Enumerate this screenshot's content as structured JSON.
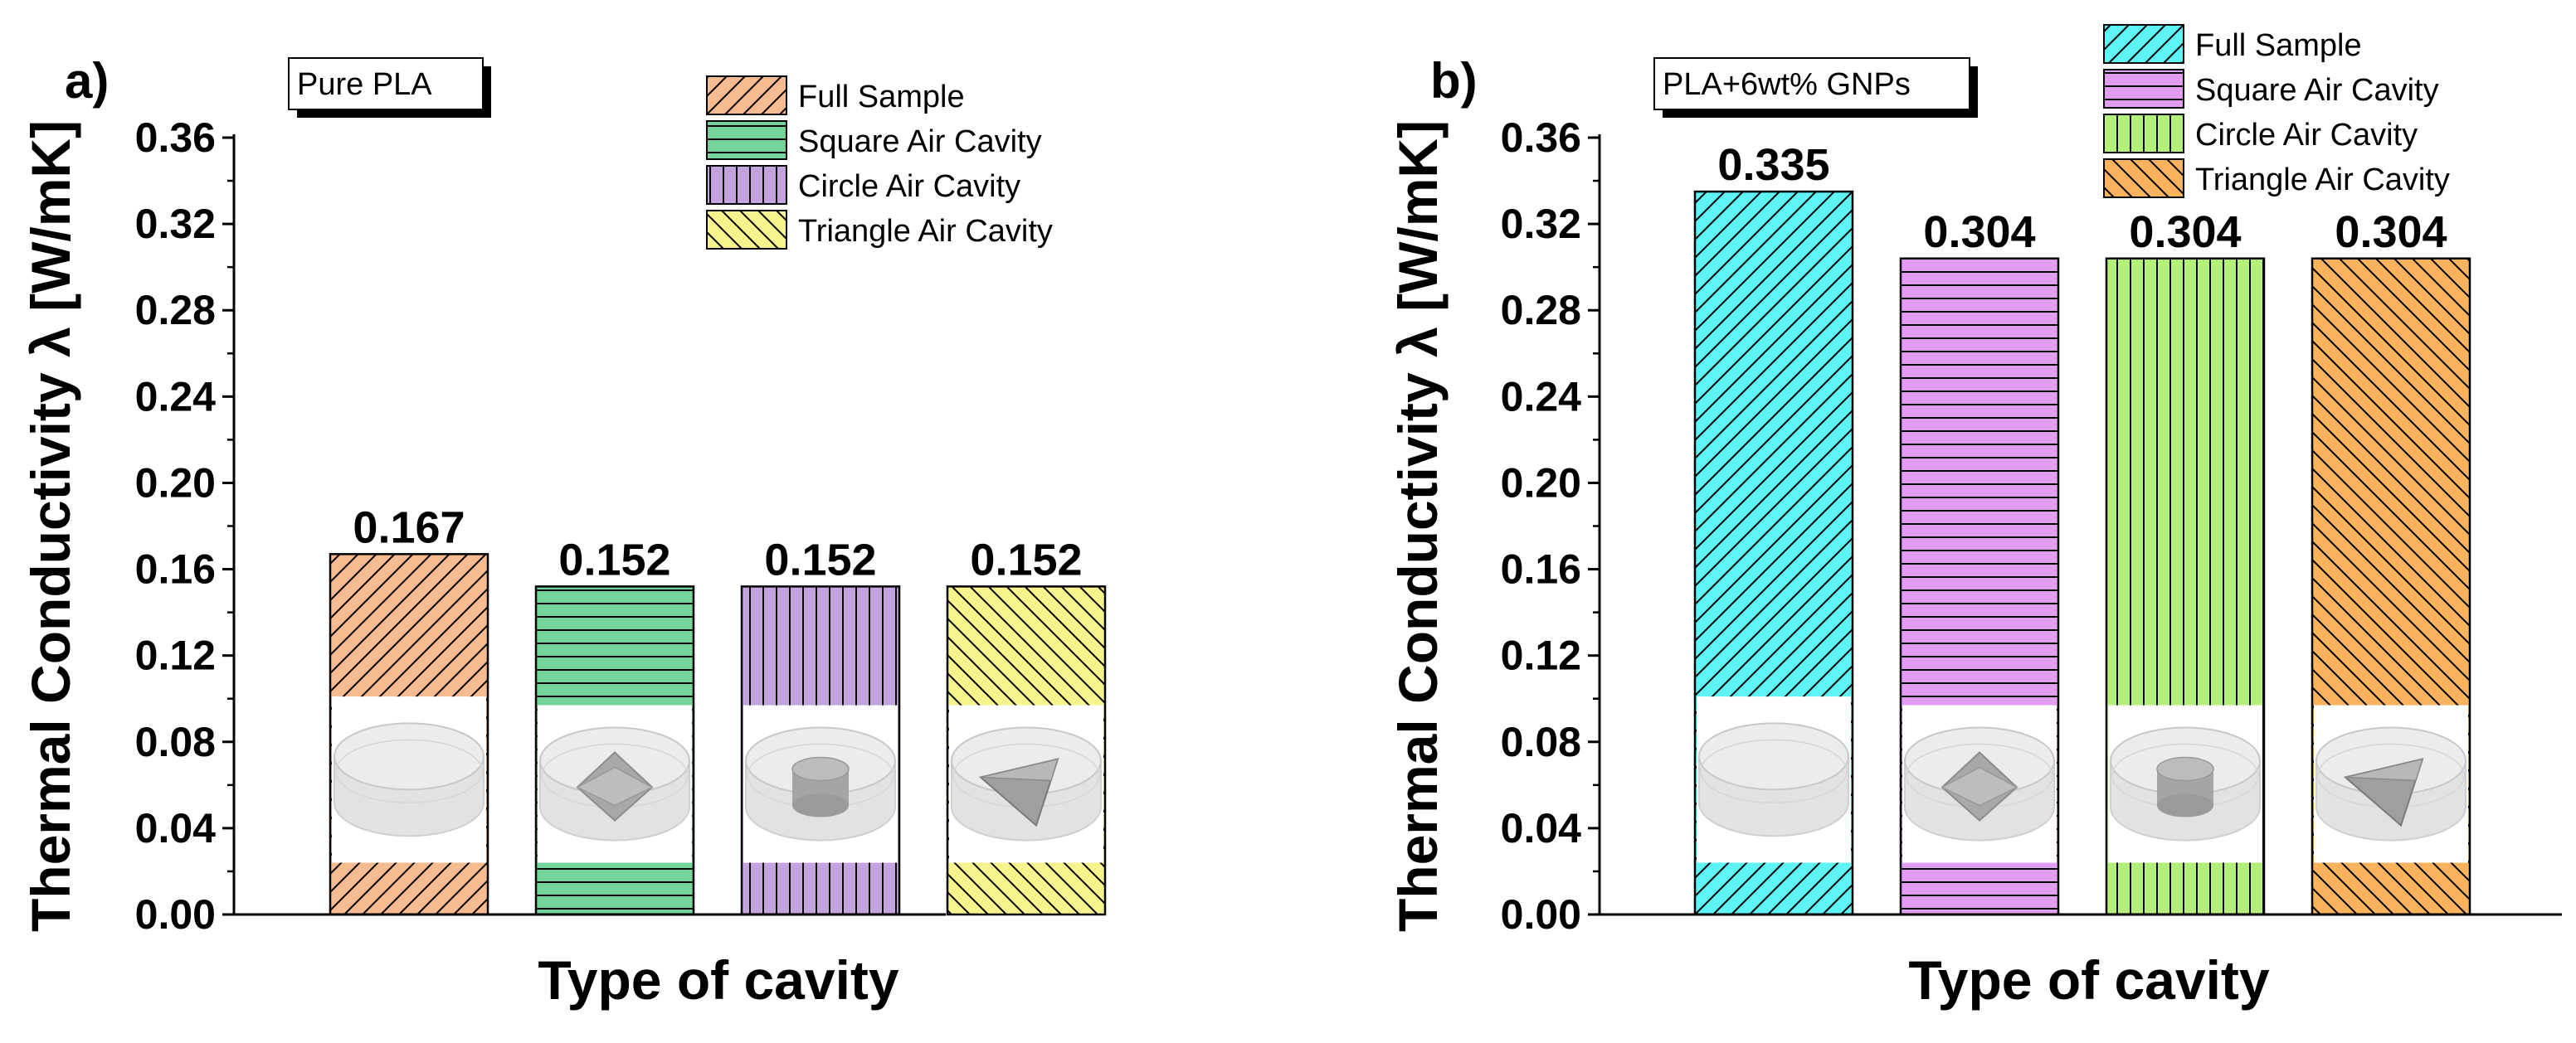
{
  "chart_data": [
    {
      "type": "bar",
      "panel_label": "a)",
      "annotation": "Pure PLA",
      "categories": [
        "Full Sample",
        "Square Air Cavity",
        "Circle Air Cavity",
        "Triangle Air Cavity"
      ],
      "values": [
        0.167,
        0.152,
        0.152,
        0.152
      ],
      "data_labels": [
        "0.167",
        "0.152",
        "0.152",
        "0.152"
      ],
      "colors": [
        "#f7bb8f",
        "#74d39a",
        "#c3a3de",
        "#f7f48d"
      ],
      "hatches": [
        "diag-up",
        "horizontal",
        "vertical",
        "diag-down"
      ],
      "legend": [
        "Full Sample",
        "Square Air Cavity",
        "Circle Air Cavity",
        "Triangle Air Cavity"
      ],
      "legend_position": "top-right",
      "xlabel": "Type of cavity",
      "ylabel": "Thermal Conductivity λ [W/mK]",
      "ylim": [
        0,
        0.36
      ],
      "yticks": [
        "0.00",
        "0.04",
        "0.08",
        "0.12",
        "0.16",
        "0.20",
        "0.24",
        "0.28",
        "0.32",
        "0.36"
      ],
      "insets": [
        "cylinder",
        "square-cavity",
        "circle-cavity",
        "triangle-cavity"
      ]
    },
    {
      "type": "bar",
      "panel_label": "b)",
      "annotation": "PLA+6wt% GNPs",
      "categories": [
        "Full Sample",
        "Square Air Cavity",
        "Circle Air Cavity",
        "Triangle Air Cavity"
      ],
      "values": [
        0.335,
        0.304,
        0.304,
        0.304
      ],
      "data_labels": [
        "0.335",
        "0.304",
        "0.304",
        "0.304"
      ],
      "colors": [
        "#5ef3f5",
        "#e29ef4",
        "#b3f07a",
        "#fbb25c"
      ],
      "hatches": [
        "diag-up",
        "horizontal",
        "vertical",
        "diag-down"
      ],
      "legend": [
        "Full Sample",
        "Square Air Cavity",
        "Circle Air Cavity",
        "Triangle Air Cavity"
      ],
      "legend_position": "top-right",
      "xlabel": "Type of cavity",
      "ylabel": "Thermal Conductivity λ [W/mK]",
      "ylim": [
        0,
        0.36
      ],
      "yticks": [
        "0.00",
        "0.04",
        "0.08",
        "0.12",
        "0.16",
        "0.20",
        "0.24",
        "0.28",
        "0.32",
        "0.36"
      ],
      "insets": [
        "cylinder",
        "square-cavity",
        "circle-cavity",
        "triangle-cavity"
      ]
    }
  ]
}
